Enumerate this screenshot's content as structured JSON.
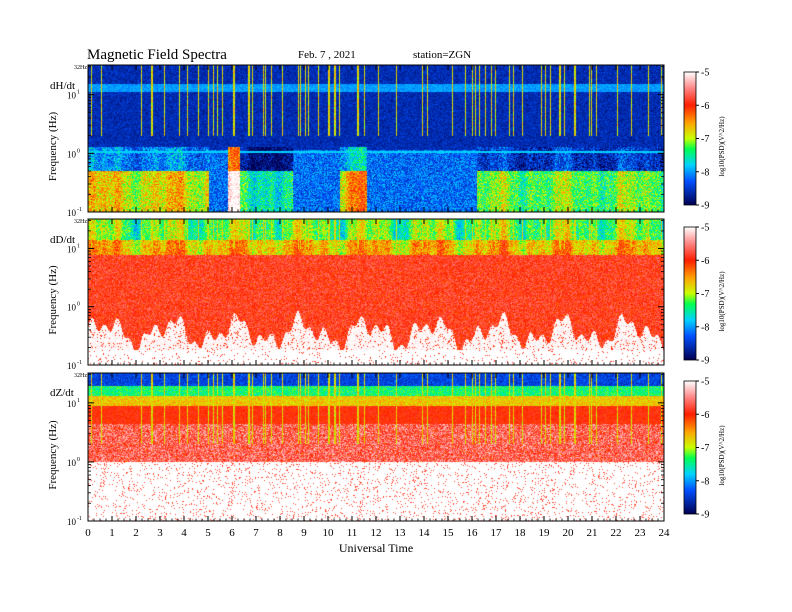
{
  "chart_data": {
    "type": "heatmap",
    "title": "Magnetic Field Spectra",
    "date": "Feb. 7 , 2021",
    "station": "station=ZGN",
    "xlabel": "Universal Time",
    "x_ticks": [
      "0",
      "1",
      "2",
      "3",
      "4",
      "5",
      "6",
      "7",
      "8",
      "9",
      "10",
      "11",
      "12",
      "13",
      "14",
      "15",
      "16",
      "17",
      "18",
      "19",
      "20",
      "21",
      "22",
      "23",
      "24"
    ],
    "xlim": [
      0,
      24
    ],
    "ylabel": "Frequency (Hz)",
    "yscale": "log",
    "y_top_label": "32Hz",
    "y_ticks": [
      {
        "value": 10,
        "base": "10",
        "exp": "1"
      },
      {
        "value": 1,
        "base": "10",
        "exp": "0"
      },
      {
        "value": 0.1,
        "base": "10",
        "exp": "-1"
      }
    ],
    "ylim": [
      0.1,
      32
    ],
    "colorbar": {
      "label": "log10(PSD)(V^2/Hz)",
      "ticks": [
        "-5",
        "-6",
        "-7",
        "-8",
        "-9"
      ],
      "range": [
        -9,
        -5
      ],
      "colors": [
        "#000060",
        "#0000d0",
        "#0066ff",
        "#00ccff",
        "#00ff66",
        "#ccff00",
        "#ffaa00",
        "#ff2200",
        "#ff7777",
        "#ffffff"
      ]
    },
    "panels": [
      {
        "channel": "dH/dt",
        "description": "dark blue background at high frequency; low-frequency activity below ~1 Hz",
        "activity": [
          {
            "t0": 0.0,
            "t1": 5.0,
            "level": -6.8
          },
          {
            "t0": 5.8,
            "t1": 6.3,
            "level": -5.2
          },
          {
            "t0": 6.3,
            "t1": 8.5,
            "level": -7.5
          },
          {
            "t0": 10.5,
            "t1": 11.6,
            "level": -6.5
          },
          {
            "t0": 16.2,
            "t1": 24.0,
            "level": -7.2
          }
        ]
      },
      {
        "channel": "dD/dt",
        "description": "broad red power 0.3-10 Hz with green/yellow near 20 Hz",
        "activity": [
          {
            "t0": 0.0,
            "t1": 24.0,
            "level": -6.0
          }
        ]
      },
      {
        "channel": "dZ/dt",
        "description": "strong band 5-20 Hz, red fading to white below 1 Hz",
        "activity": [
          {
            "t0": 0.0,
            "t1": 24.0,
            "level": -6.3
          }
        ]
      }
    ]
  }
}
